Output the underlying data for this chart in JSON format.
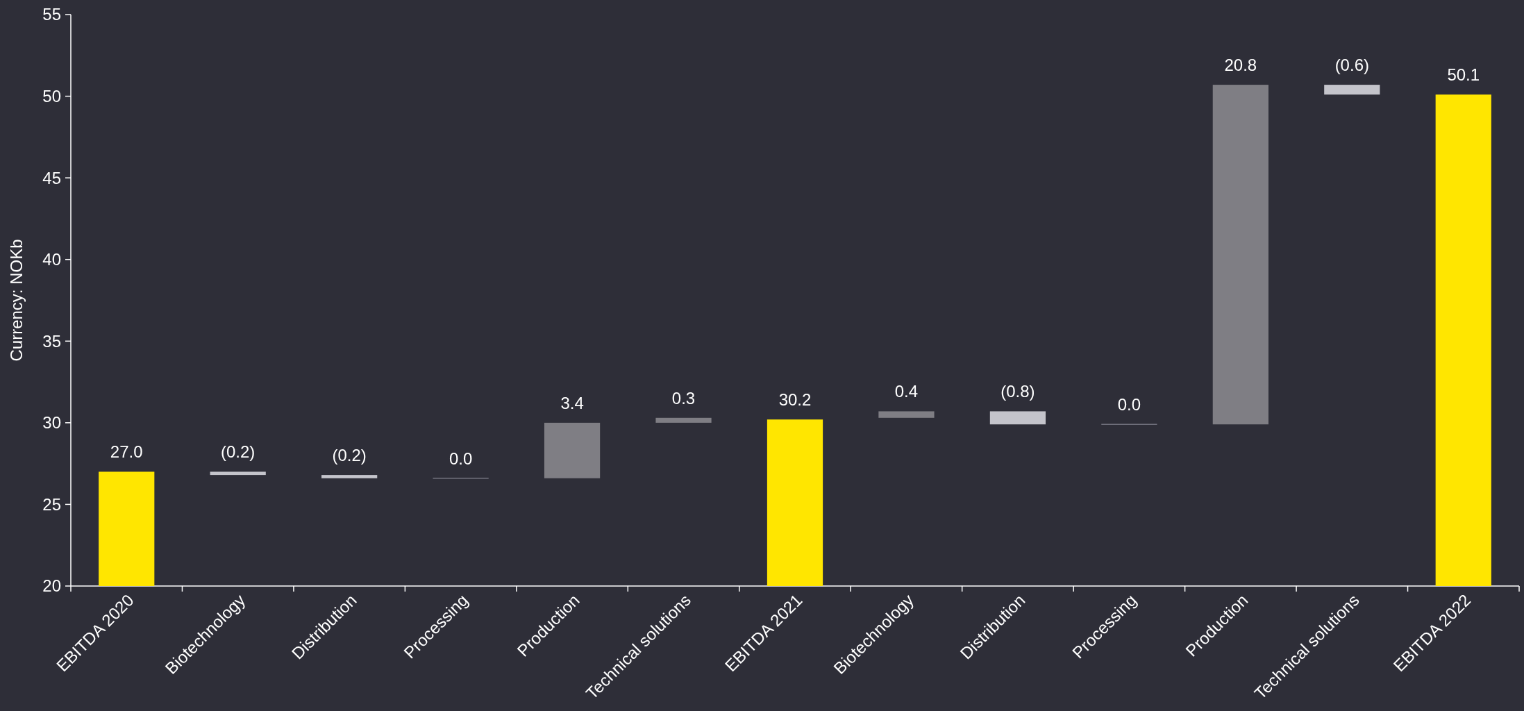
{
  "chart_data": {
    "type": "bar",
    "ylabel": "Currency: NOKb",
    "categories": [
      "EBITDA 2020",
      "Biotechnology",
      "Distribution",
      "Processing",
      "Production",
      "Technical solutions",
      "EBITDA 2021",
      "Biotechnology",
      "Distribution",
      "Processing",
      "Production",
      "Technical solutions",
      "EBITDA 2022"
    ],
    "values": [
      27.0,
      -0.2,
      -0.2,
      0.0,
      3.4,
      0.3,
      30.2,
      0.4,
      -0.8,
      0.0,
      20.8,
      -0.6,
      50.1
    ],
    "base": [
      null,
      27.0,
      26.8,
      26.6,
      26.6,
      30.0,
      null,
      30.3,
      30.7,
      29.9,
      29.9,
      50.7,
      null
    ],
    "colors": [
      "#ffe600",
      "#c4c4cb",
      "#c4c4cb",
      "#747480",
      "#7f7e84",
      "#7f7e84",
      "#ffe600",
      "#7f7e84",
      "#c4c4cb",
      "#747480",
      "#7f7e84",
      "#c4c4cb",
      "#ffe600"
    ],
    "value_labels": [
      "27.0",
      "(0.2)",
      "(0.2)",
      "0.0",
      "3.4",
      "0.3",
      "30.2",
      "0.4",
      "(0.8)",
      "0.0",
      "20.8",
      "(0.6)",
      "50.1"
    ],
    "ylim": [
      20,
      55
    ],
    "yticks": [
      20,
      25,
      30,
      35,
      40,
      45,
      50,
      55
    ],
    "grid": false
  }
}
